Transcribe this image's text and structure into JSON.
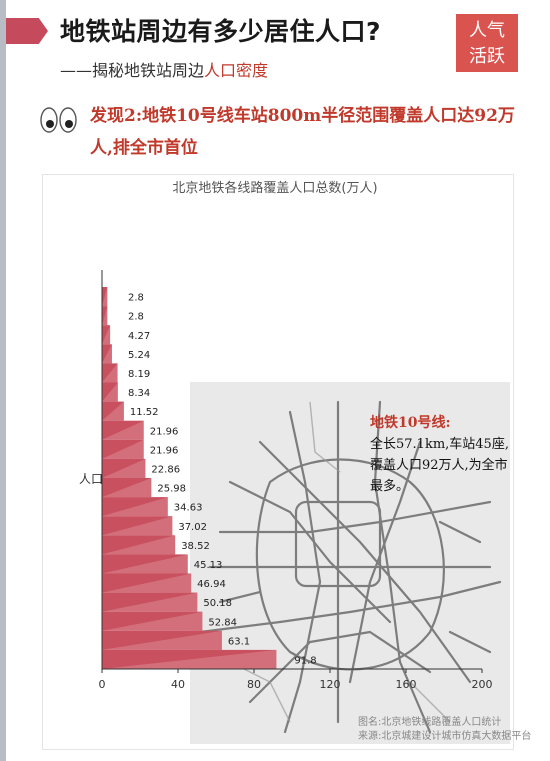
{
  "header": {
    "title": "地铁站周边有多少居住人口?",
    "subtitle_prefix": "——揭秘地铁站周边",
    "subtitle_highlight": "人口密度",
    "badge_line1": "人气",
    "badge_line2": "活跃"
  },
  "finding": {
    "text": "发现2:地铁10号线车站800m半径范围覆盖人口达92万人,排全市首位"
  },
  "annotation": {
    "title": "地铁10号线:",
    "body": "全长57.1km,车站45座,覆盖人口92万人,为全市最多。"
  },
  "footer": {
    "line1": "图名:北京地铁线路覆盖人口统计",
    "line2": "来源:北京城建设计城市仿真大数据平台"
  },
  "colors": {
    "accent": "#c0392b",
    "bar": "#c9505e",
    "badge": "#d9534f"
  },
  "chart_data": {
    "type": "bar",
    "orientation": "horizontal",
    "title": "北京地铁各线路覆盖人口总数(万人)",
    "ylabel": "人口",
    "xlabel": "",
    "xlim": [
      0,
      200
    ],
    "x_ticks": [
      "0",
      "40",
      "80",
      "120",
      "160",
      "200"
    ],
    "values": [
      2.8,
      2.8,
      4.27,
      5.24,
      8.19,
      8.34,
      11.52,
      21.96,
      21.96,
      22.86,
      25.98,
      34.63,
      37.02,
      38.52,
      45.13,
      46.94,
      50.18,
      52.84,
      63.1,
      91.8
    ],
    "data_labels": [
      "2.8",
      "2.8",
      "4.27",
      "5.24",
      "8.19",
      "8.34",
      "11.52",
      "21.96",
      "21.96",
      "22.86",
      "25.98",
      "34.63",
      "37.02",
      "38.52",
      "45.13",
      "46.94",
      "50.18",
      "52.84",
      "63.1",
      "91.8"
    ],
    "grid": false
  }
}
